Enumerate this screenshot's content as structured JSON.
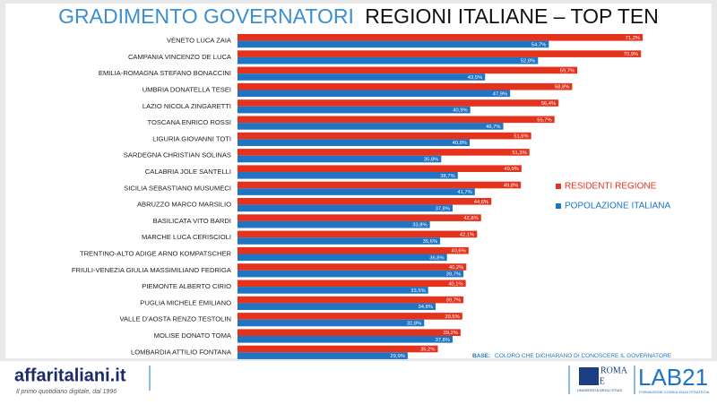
{
  "chart_data": {
    "type": "hbar",
    "title": [
      "GRADIMENTO GOVERNATORI",
      "REGIONI ITALIANE – TOP TEN"
    ],
    "categories": [
      "VENETO LUCA ZAIA",
      "CAMPANIA VINCENZO DE LUCA",
      "EMILIA-ROMAGNA STEFANO BONACCINI",
      "UMBRIA DONATELLA TESEI",
      "LAZIO NICOLA ZINGARETTI",
      "TOSCANA ENRICO ROSSI",
      "LIGURIA GIOVANNI TOTI",
      "SARDEGNA CHRISTIAN SOLINAS",
      "CALABRIA JOLE SANTELLI",
      "SICILIA SEBASTIANO MUSUMECI",
      "ABRUZZO MARCO MARSILIO",
      "BASILICATA VITO BARDI",
      "MARCHE LUCA CERISCIOLI",
      "TRENTINO-ALTO ADIGE ARNO KOMPATSCHER",
      "FRIULI-VENEZIA GIULIA MASSIMILIANO FEDRIGA",
      "PIEMONTE ALBERTO CIRIO",
      "PUGLIA MICHELE EMILIANO",
      "VALLE D'AOSTA RENZO TESTOLIN",
      "MOLISE DONATO TOMA",
      "LOMBARDIA ATTILIO FONTANA"
    ],
    "series": [
      {
        "name": "RESIDENTI REGIONE",
        "color": "#e5321c",
        "values": [
          71.2,
          70.9,
          59.7,
          58.8,
          56.4,
          55.7,
          51.6,
          51.3,
          49.9,
          49.8,
          44.6,
          42.8,
          42.1,
          40.6,
          40.2,
          40.1,
          39.7,
          39.5,
          39.2,
          35.2
        ],
        "value_labels": [
          "71,2%",
          "70,9%",
          "59,7%",
          "58,8%",
          "56,4%",
          "55,7%",
          "51,6%",
          "51,3%",
          "49,9%",
          "49,8%",
          "44,6%",
          "42,8%",
          "42,1%",
          "40,6%",
          "40,2%",
          "40,1%",
          "39,7%",
          "39,5%",
          "39,2%",
          "35,2%"
        ]
      },
      {
        "name": "POPOLAZIONE ITALIANA",
        "color": "#1f74c4",
        "values": [
          54.7,
          52.8,
          43.5,
          47.9,
          40.9,
          46.7,
          40.8,
          35.8,
          38.7,
          41.7,
          37.8,
          33.8,
          35.6,
          36.8,
          39.7,
          33.5,
          34.8,
          32.8,
          37.8,
          29.9
        ],
        "value_labels": [
          "54,7%",
          "52,8%",
          "43,5%",
          "47,9%",
          "40,9%",
          "46,7%",
          "40,8%",
          "35,8%",
          "38,7%",
          "41,7%",
          "37,8%",
          "33,8%",
          "35,6%",
          "36,8%",
          "39,7%",
          "33,5%",
          "34,8%",
          "32,8%",
          "37,8%",
          "29,9%"
        ]
      }
    ],
    "note": {
      "lead": "BASE:",
      "text": "COLORO CHE DICHIARANO DI CONOSCERE IL GOVERNATORE"
    }
  },
  "footer": {
    "brand": "affaritaliani.it",
    "tagline": "Il primo quotidiano digitale, dal 1996",
    "uni_top": "ROMA",
    "uni_bottom": "TRE",
    "uni_sub": "UNIVERSITÀ DEGLI STUDI",
    "lab": "LAB21",
    "lab_sub": "FORMAZIONE CONSULENZA STRATEGIA"
  }
}
